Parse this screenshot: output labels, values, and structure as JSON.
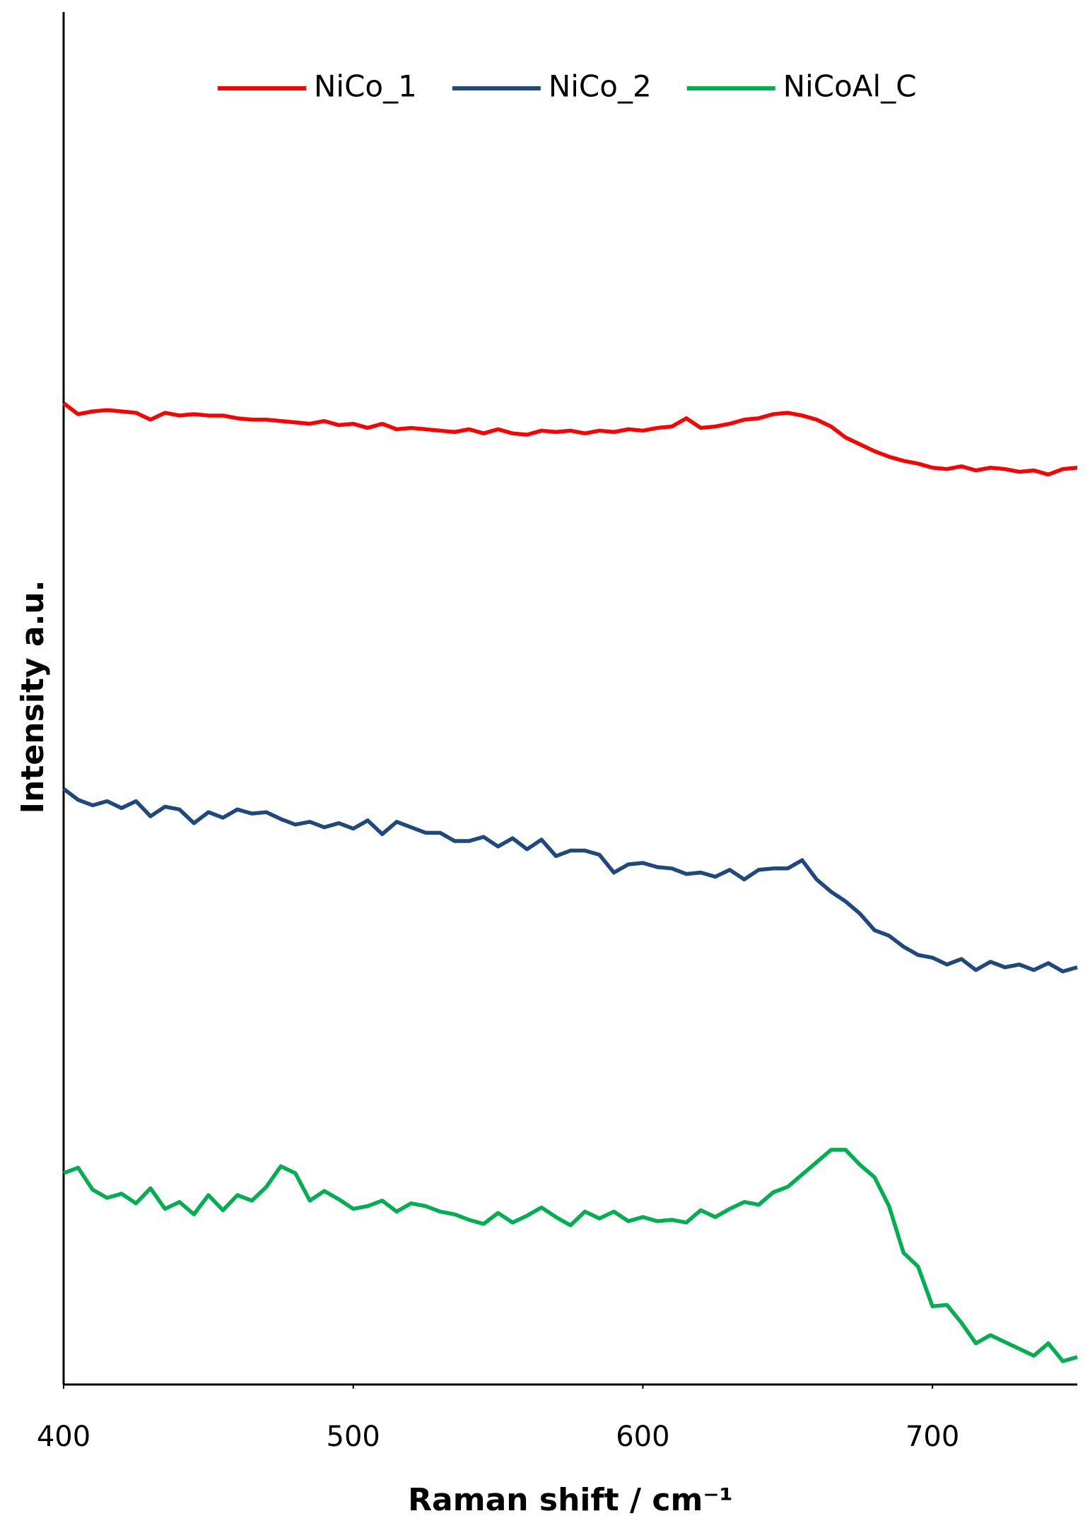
{
  "chart_data": {
    "type": "line",
    "x_label": "Raman shift / cm⁻¹",
    "y_label": "Intensity a.u.",
    "x": [
      400,
      405,
      410,
      415,
      420,
      425,
      430,
      435,
      440,
      445,
      450,
      455,
      460,
      465,
      470,
      475,
      480,
      485,
      490,
      495,
      500,
      505,
      510,
      515,
      520,
      525,
      530,
      535,
      540,
      545,
      550,
      555,
      560,
      565,
      570,
      575,
      580,
      585,
      590,
      595,
      600,
      605,
      610,
      615,
      620,
      625,
      630,
      635,
      640,
      645,
      650,
      655,
      660,
      665,
      670,
      675,
      680,
      685,
      690,
      695,
      700,
      705,
      710,
      715,
      720,
      725,
      730,
      735,
      740,
      745,
      750
    ],
    "series": [
      {
        "name": "NiCo_1",
        "color": "#ff0000",
        "values": [
          71.5,
          70.7,
          70.9,
          71.0,
          70.9,
          70.8,
          70.3,
          70.8,
          70.6,
          70.7,
          70.6,
          70.6,
          70.4,
          70.3,
          70.3,
          70.2,
          70.1,
          70.0,
          70.2,
          69.9,
          70.0,
          69.7,
          70.0,
          69.6,
          69.7,
          69.6,
          69.5,
          69.4,
          69.6,
          69.3,
          69.6,
          69.3,
          69.2,
          69.5,
          69.4,
          69.5,
          69.3,
          69.5,
          69.4,
          69.6,
          69.5,
          69.7,
          69.8,
          70.4,
          69.7,
          69.8,
          70.0,
          70.3,
          70.4,
          70.7,
          70.8,
          70.6,
          70.3,
          69.8,
          69.0,
          68.5,
          68.0,
          67.6,
          67.3,
          67.1,
          66.8,
          66.7,
          66.9,
          66.6,
          66.8,
          66.7,
          66.5,
          66.6,
          66.3,
          66.7,
          66.8
        ]
      },
      {
        "name": "NiCo_2",
        "color": "#1f497d",
        "values": [
          43.4,
          42.6,
          42.2,
          42.5,
          42.0,
          42.5,
          41.4,
          42.1,
          41.9,
          40.9,
          41.7,
          41.3,
          41.9,
          41.6,
          41.7,
          41.2,
          40.8,
          41.0,
          40.6,
          40.9,
          40.5,
          41.1,
          40.1,
          41.0,
          40.6,
          40.2,
          40.2,
          39.6,
          39.6,
          39.9,
          39.2,
          39.8,
          39.0,
          39.7,
          38.5,
          38.9,
          38.9,
          38.6,
          37.3,
          37.9,
          38.0,
          37.7,
          37.6,
          37.2,
          37.3,
          37.0,
          37.5,
          36.8,
          37.5,
          37.6,
          37.6,
          38.2,
          36.8,
          35.9,
          35.2,
          34.3,
          33.1,
          32.7,
          31.9,
          31.3,
          31.1,
          30.6,
          31.0,
          30.2,
          30.8,
          30.4,
          30.6,
          30.2,
          30.7,
          30.1,
          30.4
        ]
      },
      {
        "name": "NiCoAl_C",
        "color": "#00b050",
        "values": [
          15.4,
          15.8,
          14.2,
          13.6,
          13.9,
          13.2,
          14.3,
          12.8,
          13.3,
          12.4,
          13.8,
          12.7,
          13.8,
          13.4,
          14.4,
          15.9,
          15.4,
          13.4,
          14.1,
          13.5,
          12.8,
          13.0,
          13.4,
          12.6,
          13.2,
          13.0,
          12.6,
          12.4,
          12.0,
          11.7,
          12.5,
          11.8,
          12.3,
          12.9,
          12.2,
          11.6,
          12.6,
          12.1,
          12.6,
          11.9,
          12.2,
          11.9,
          12.0,
          11.8,
          12.7,
          12.2,
          12.8,
          13.3,
          13.1,
          14.0,
          14.4,
          15.3,
          16.2,
          17.1,
          17.1,
          16.0,
          15.1,
          13.0,
          9.6,
          8.6,
          5.7,
          5.8,
          4.5,
          3.0,
          3.6,
          3.1,
          2.6,
          2.1,
          3.0,
          1.7,
          2.0
        ]
      }
    ],
    "xlim": [
      400,
      750
    ],
    "xticks": [
      400,
      500,
      600,
      700
    ],
    "ylim": [
      0,
      100
    ],
    "legend": "top"
  }
}
